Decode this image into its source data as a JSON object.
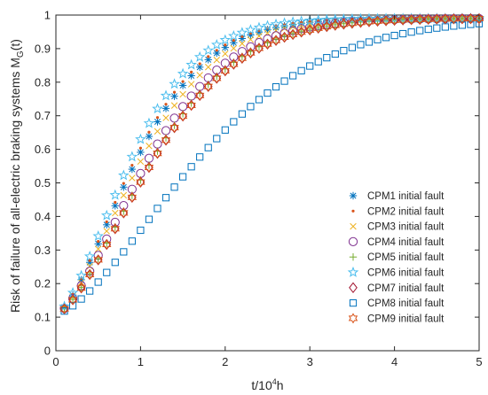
{
  "chart_data": {
    "type": "scatter",
    "xlabel": {
      "base": "t/10",
      "sup": "4",
      "unit": "h"
    },
    "ylabel": {
      "main": "Risk of failure of all-electric braking systems M",
      "sub": "G",
      "tail": "(t)"
    },
    "xlim": [
      0,
      5
    ],
    "ylim": [
      0,
      1
    ],
    "xticks": [
      "0",
      "1",
      "2",
      "3",
      "4",
      "5"
    ],
    "yticks": [
      "0",
      "0.1",
      "0.2",
      "0.3",
      "0.4",
      "0.5",
      "0.6",
      "0.7",
      "0.8",
      "0.9",
      "1"
    ],
    "grid": false,
    "legend_position": "bottom-right",
    "x": [
      0.1,
      0.2,
      0.3,
      0.4,
      0.5,
      0.6,
      0.7,
      0.8,
      0.9,
      1.0,
      1.1,
      1.2,
      1.3,
      1.4,
      1.5,
      1.6,
      1.7,
      1.8,
      1.9,
      2.0,
      2.1,
      2.2,
      2.3,
      2.4,
      2.5,
      2.6,
      2.7,
      2.8,
      2.9,
      3.0,
      3.1,
      3.2,
      3.3,
      3.4,
      3.5,
      3.6,
      3.7,
      3.8,
      3.9,
      4.0,
      4.1,
      4.2,
      4.3,
      4.4,
      4.5,
      4.6,
      4.7,
      4.8,
      4.9,
      5.0
    ],
    "series": [
      {
        "name": "CPM1 initial fault",
        "marker": "asterisk",
        "color": "#0072BD",
        "k": 5.2,
        "x0": 0.65
      },
      {
        "name": "CPM2 initial fault",
        "marker": "dot",
        "color": "#D95319",
        "k": 5.2,
        "x0": 0.62
      },
      {
        "name": "CPM3 initial fault",
        "marker": "cross",
        "color": "#EDB120",
        "k": 5.3,
        "x0": 0.72
      },
      {
        "name": "CPM4 initial fault",
        "marker": "circle",
        "color": "#7E2F8E",
        "k": 5.3,
        "x0": 0.82
      },
      {
        "name": "CPM5 initial fault",
        "marker": "plus",
        "color": "#77AC30",
        "k": 5.2,
        "x0": 0.88
      },
      {
        "name": "CPM6 initial fault",
        "marker": "star",
        "color": "#4DBEEE",
        "k": 5.4,
        "x0": 0.56
      },
      {
        "name": "CPM7 initial fault",
        "marker": "diamond",
        "color": "#A2142F",
        "k": 5.2,
        "x0": 0.9
      },
      {
        "name": "CPM8 initial fault",
        "marker": "square",
        "color": "#0072BD",
        "k": 6.5,
        "x0": 1.55
      },
      {
        "name": "CPM9 initial fault",
        "marker": "hexagram",
        "color": "#D95319",
        "k": 5.2,
        "x0": 0.9
      }
    ]
  }
}
